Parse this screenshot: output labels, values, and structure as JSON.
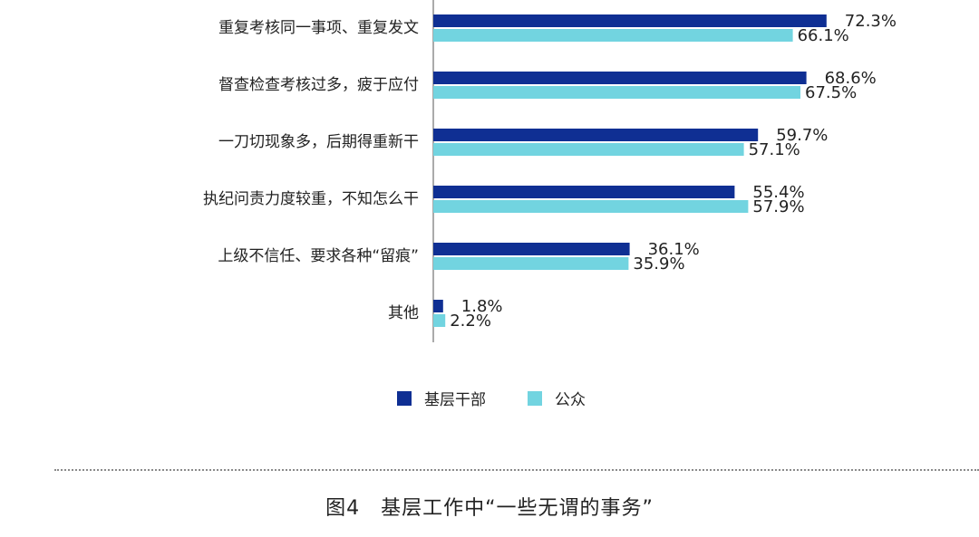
{
  "caption": "图4　基层工作中“一些无谓的事务”",
  "colors": {
    "series1": "#0f2f93",
    "series2": "#72d4e0",
    "axis": "#555555"
  },
  "chart_data": {
    "type": "bar",
    "orientation": "horizontal",
    "categories": [
      "重复考核同一事项、重复发文",
      "督查检查考核过多，疲于应付",
      "一刀切现象多，后期得重新干",
      "执纪问责力度较重，不知怎么干",
      "上级不信任、要求各种“留痕”",
      "其他"
    ],
    "series": [
      {
        "name": "基层干部",
        "values": [
          72.3,
          68.6,
          59.7,
          55.4,
          36.1,
          1.8
        ],
        "labels": [
          "72.3%",
          "68.6%",
          "59.7%",
          "55.4%",
          "36.1%",
          "1.8%"
        ]
      },
      {
        "name": "公众",
        "values": [
          66.1,
          67.5,
          57.1,
          57.9,
          35.9,
          2.2
        ],
        "labels": [
          "66.1%",
          "67.5%",
          "57.1%",
          "57.9%",
          "35.9%",
          "2.2%"
        ]
      }
    ],
    "xlim": [
      0,
      100
    ],
    "legend_position": "bottom"
  }
}
